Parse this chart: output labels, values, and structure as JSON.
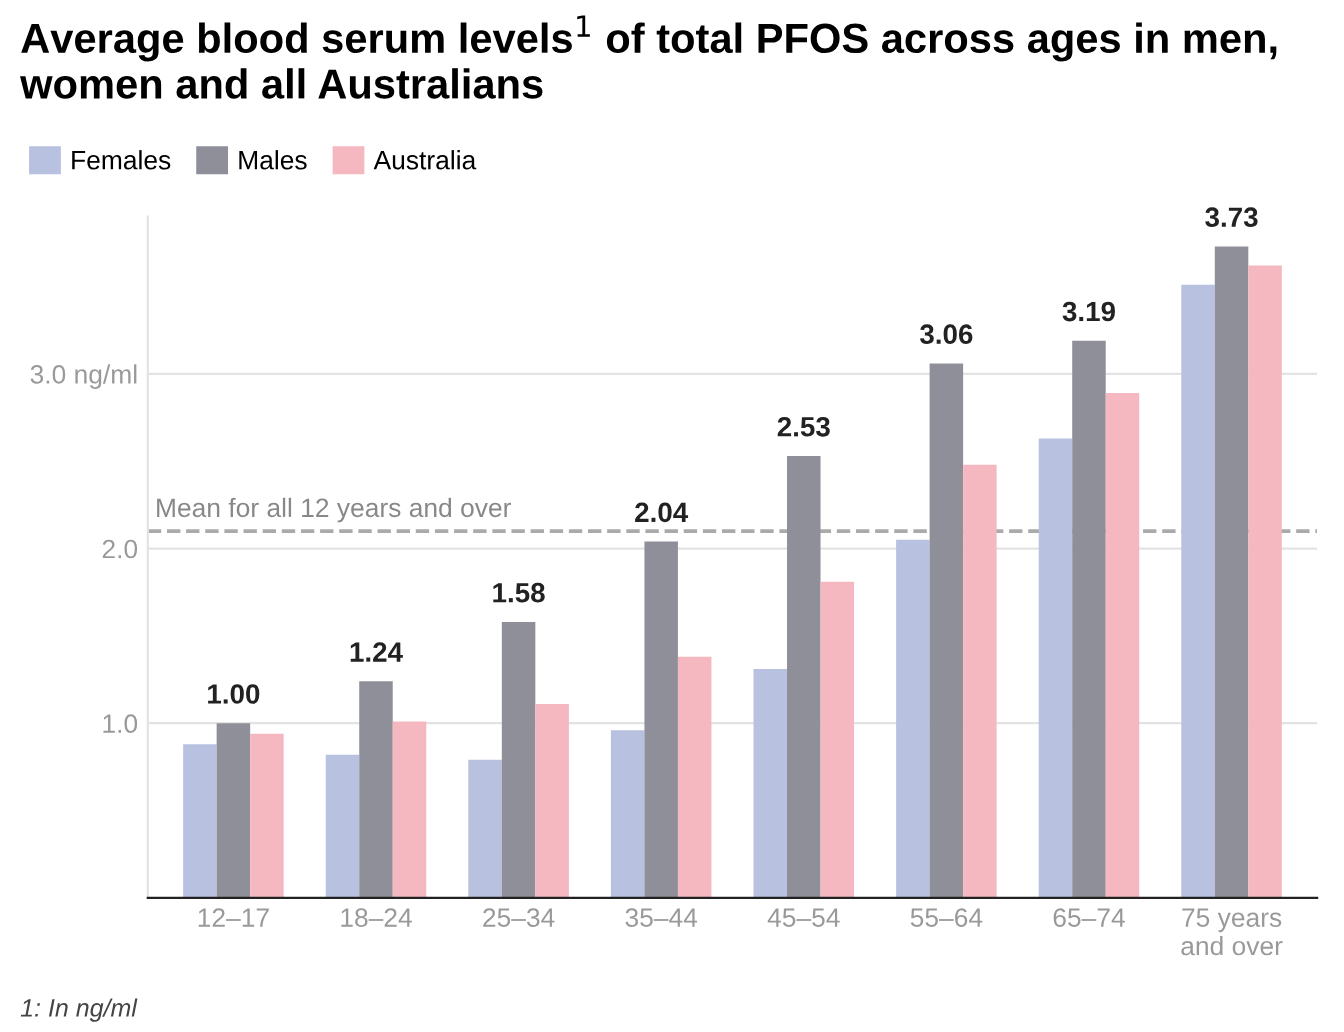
{
  "chart_data": {
    "type": "bar",
    "title": "Average blood serum levels$^{1}$ of total PFOS across ages in men, women and all Australians",
    "categories": [
      "12–17",
      "18–24",
      "25–34",
      "35–44",
      "45–54",
      "55–64",
      "65–74",
      "75 years\nand over"
    ],
    "series": [
      {
        "name": "Females",
        "color": "#b8c1e0",
        "values": [
          0.88,
          0.82,
          0.79,
          0.96,
          1.31,
          2.05,
          2.63,
          3.51
        ]
      },
      {
        "name": "Males",
        "color": "#8f8f99",
        "values": [
          1.0,
          1.24,
          1.58,
          2.04,
          2.53,
          3.06,
          3.19,
          3.73
        ],
        "value_labels": [
          "1.00",
          "1.24",
          "1.58",
          "2.04",
          "2.53",
          "3.06",
          "3.19",
          "3.73"
        ]
      },
      {
        "name": "Australia",
        "color": "#f5b8c0",
        "values": [
          0.94,
          1.01,
          1.11,
          1.38,
          1.81,
          2.48,
          2.89,
          3.62
        ]
      }
    ],
    "ylim": [
      0,
      3.9
    ],
    "yticks": [
      {
        "value": 1.0,
        "label": "1.0"
      },
      {
        "value": 2.0,
        "label": "2.0"
      },
      {
        "value": 3.0,
        "label": "3.0 ng/ml"
      }
    ],
    "grid": "y",
    "legend": "top left",
    "ref_lines": [
      {
        "axis": "y",
        "value": 2.1,
        "label": "Mean for all 12 years and over",
        "color": "#aaaaaa",
        "line_style": "dashed"
      }
    ],
    "annotations": [
      "1: In ng/ml"
    ]
  }
}
